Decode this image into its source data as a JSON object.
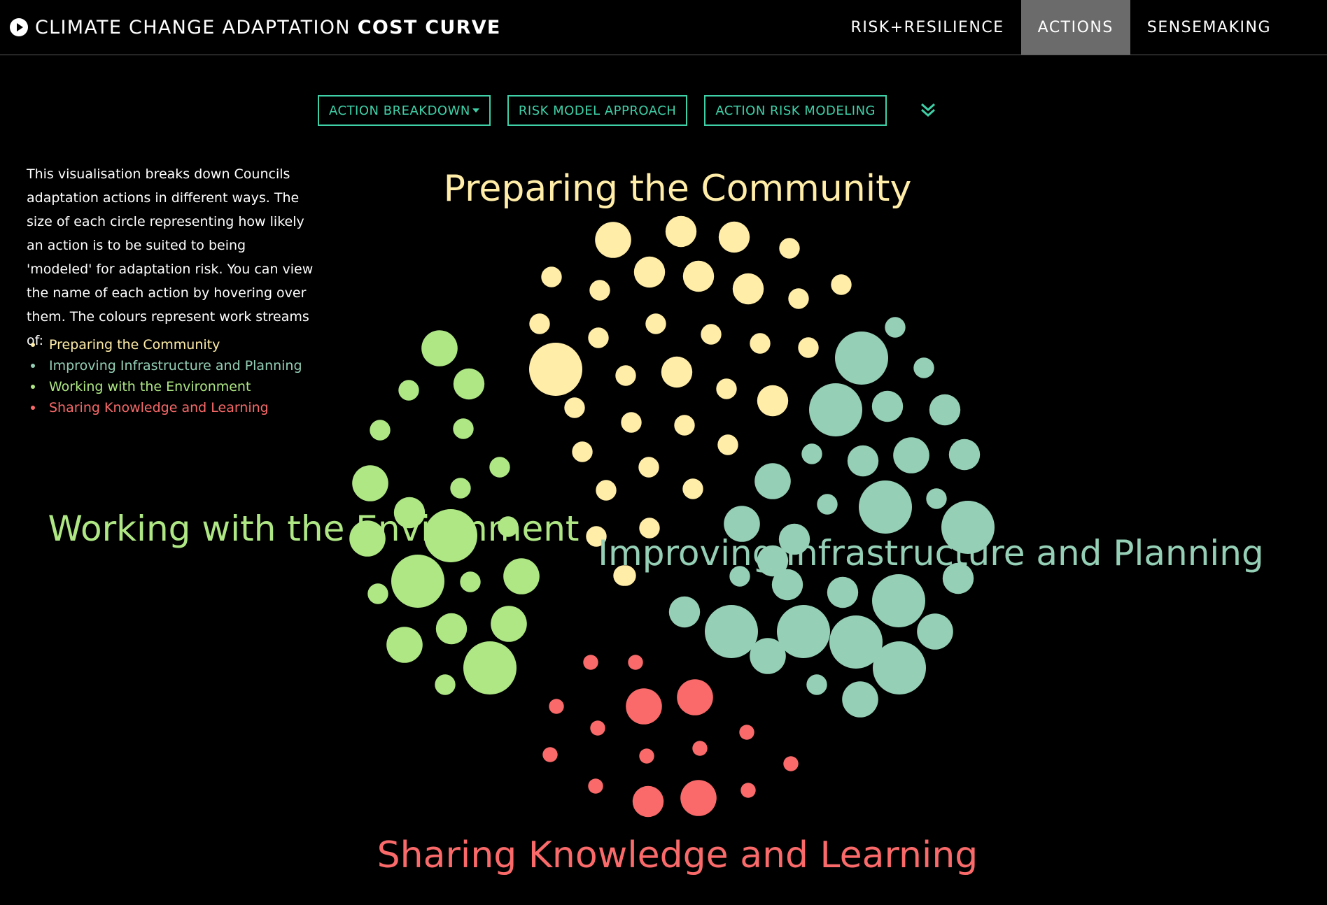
{
  "header": {
    "title_light": "CLIMATE CHANGE ADAPTATION",
    "title_bold": "COST CURVE",
    "nav": [
      {
        "label": "RISK+RESILIENCE",
        "active": false
      },
      {
        "label": "ACTIONS",
        "active": true
      },
      {
        "label": "SENSEMAKING",
        "active": false
      }
    ]
  },
  "subnav": {
    "buttons": [
      "ACTION BREAKDOWN",
      "RISK MODEL APPROACH",
      "ACTION RISK MODELING"
    ],
    "expand_icon": "double-chevron-down-icon"
  },
  "description": "This visualisation breaks down Councils adaptation actions in different ways. The size of each circle representing how likely an action is to be suited to being 'modeled' for adaptation risk. You can view the name of each action by hovering over them. The colours represent work streams of:",
  "chart_data": {
    "type": "bubble",
    "size_meaning": "how likely an action is to be suited to being 'modeled' for adaptation risk (relative)",
    "groups": [
      {
        "name": "Preparing the Community",
        "color": "#ffeda8",
        "bubbles": [
          {
            "v": 0.46
          },
          {
            "v": 0.34
          },
          {
            "v": 0.34
          },
          {
            "v": 0.15
          },
          {
            "v": 0.15
          },
          {
            "v": 0.34
          },
          {
            "v": 0.15
          },
          {
            "v": 0.34
          },
          {
            "v": 0.34
          },
          {
            "v": 0.15
          },
          {
            "v": 0.15
          },
          {
            "v": 0.15
          },
          {
            "v": 0.15
          },
          {
            "v": 0.15
          },
          {
            "v": 0.15
          },
          {
            "v": 0.15
          },
          {
            "v": 0.15
          },
          {
            "v": 1.0
          },
          {
            "v": 0.15
          },
          {
            "v": 0.34
          },
          {
            "v": 0.15
          },
          {
            "v": 0.34
          },
          {
            "v": 0.15
          },
          {
            "v": 0.15
          },
          {
            "v": 0.15
          },
          {
            "v": 0.15
          },
          {
            "v": 0.15
          },
          {
            "v": 0.15
          },
          {
            "v": 0.15
          },
          {
            "v": 0.15
          },
          {
            "v": 0.15
          },
          {
            "v": 0.15
          },
          {
            "v": 0.15
          },
          {
            "v": 0.15
          }
        ]
      },
      {
        "name": "Improving Infrastructure and Planning",
        "color": "#94cfb6",
        "bubbles": [
          {
            "v": 0.15
          },
          {
            "v": 1.0
          },
          {
            "v": 0.15
          },
          {
            "v": 1.0
          },
          {
            "v": 0.34
          },
          {
            "v": 0.34
          },
          {
            "v": 0.15
          },
          {
            "v": 0.34
          },
          {
            "v": 0.46
          },
          {
            "v": 0.34
          },
          {
            "v": 0.46
          },
          {
            "v": 0.15
          },
          {
            "v": 1.0
          },
          {
            "v": 0.15
          },
          {
            "v": 1.0
          },
          {
            "v": 0.46
          },
          {
            "v": 0.34
          },
          {
            "v": 0.34
          },
          {
            "v": 0.15
          },
          {
            "v": 0.34
          },
          {
            "v": 0.34
          },
          {
            "v": 0.34
          },
          {
            "v": 1.0
          },
          {
            "v": 0.34
          },
          {
            "v": 1.0
          },
          {
            "v": 1.0
          },
          {
            "v": 0.46
          },
          {
            "v": 1.0
          },
          {
            "v": 0.46
          },
          {
            "v": 1.0
          },
          {
            "v": 0.15
          },
          {
            "v": 0.46
          },
          {
            "v": 0.34
          }
        ]
      },
      {
        "name": "Working with the Environment",
        "color": "#aee784",
        "bubbles": [
          {
            "v": 0.46
          },
          {
            "v": 0.34
          },
          {
            "v": 0.15
          },
          {
            "v": 0.15
          },
          {
            "v": 0.15
          },
          {
            "v": 0.15
          },
          {
            "v": 0.46
          },
          {
            "v": 0.15
          },
          {
            "v": 0.34
          },
          {
            "v": 0.46
          },
          {
            "v": 1.0
          },
          {
            "v": 0.46
          },
          {
            "v": 0.15
          },
          {
            "v": 1.0
          },
          {
            "v": 0.15
          },
          {
            "v": 0.46
          },
          {
            "v": 0.15
          },
          {
            "v": 0.34
          },
          {
            "v": 0.46
          },
          {
            "v": 0.46
          },
          {
            "v": 1.0
          },
          {
            "v": 0.15
          }
        ]
      },
      {
        "name": "Sharing Knowledge and Learning",
        "color": "#fa6a6a",
        "bubbles": [
          {
            "v": 0.08
          },
          {
            "v": 0.08
          },
          {
            "v": 0.46
          },
          {
            "v": 0.46
          },
          {
            "v": 0.08
          },
          {
            "v": 0.08
          },
          {
            "v": 0.08
          },
          {
            "v": 0.08
          },
          {
            "v": 0.08
          },
          {
            "v": 0.08
          },
          {
            "v": 0.08
          },
          {
            "v": 0.08
          },
          {
            "v": 0.08
          },
          {
            "v": 0.34
          },
          {
            "v": 0.46
          },
          {
            "v": 0.08
          }
        ]
      }
    ]
  }
}
